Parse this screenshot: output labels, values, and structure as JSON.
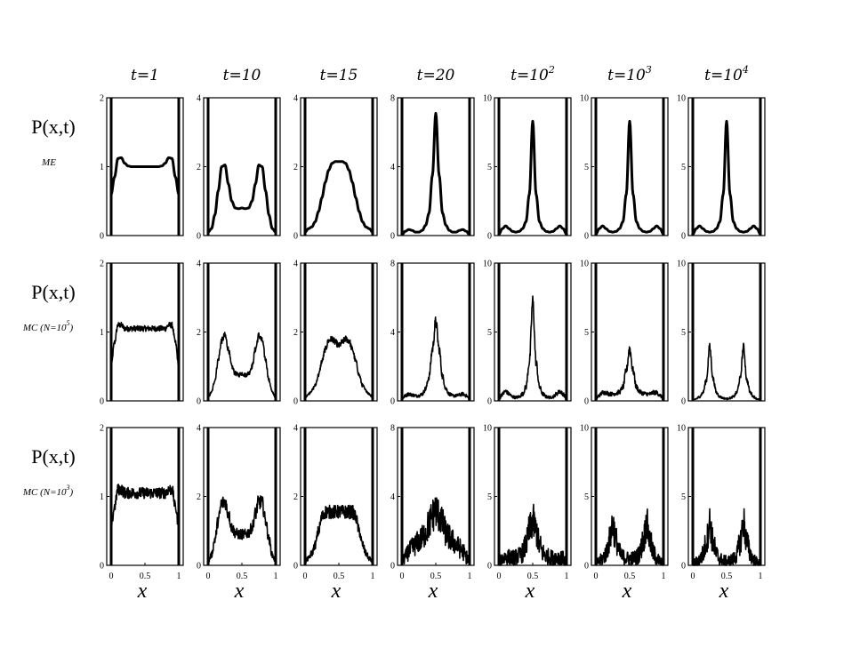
{
  "columns": [
    {
      "base": "t=1",
      "sup": ""
    },
    {
      "base": "t=10",
      "sup": ""
    },
    {
      "base": "t=15",
      "sup": ""
    },
    {
      "base": "t=20",
      "sup": ""
    },
    {
      "base": "t=10",
      "sup": "2"
    },
    {
      "base": "t=10",
      "sup": "3"
    },
    {
      "base": "t=10",
      "sup": "4"
    }
  ],
  "rows": [
    {
      "title": "P(x,t)",
      "sub_base": "ME",
      "sub_sup": "",
      "sub_tail": ""
    },
    {
      "title": "P(x,t)",
      "sub_base": "MC (N=10",
      "sub_sup": "5",
      "sub_tail": ")"
    },
    {
      "title": "P(x,t)",
      "sub_base": "MC (N=10",
      "sub_sup": "3",
      "sub_tail": ")"
    }
  ],
  "xlabel": "x",
  "chart_data": {
    "type": "line",
    "layout": "grid of 3 rows x 7 columns of small panels",
    "xlim": [
      0,
      1
    ],
    "x_ticks": [
      "0",
      "0.5",
      "1"
    ],
    "y_axes_by_column": [
      {
        "ylim": [
          0,
          2
        ],
        "ticks": [
          "0",
          "1",
          "2"
        ]
      },
      {
        "ylim": [
          0,
          4
        ],
        "ticks": [
          "0",
          "2",
          "4"
        ]
      },
      {
        "ylim": [
          0,
          4
        ],
        "ticks": [
          "0",
          "2",
          "4"
        ]
      },
      {
        "ylim": [
          0,
          8
        ],
        "ticks": [
          "0",
          "4",
          "8"
        ]
      },
      {
        "ylim": [
          0,
          10
        ],
        "ticks": [
          "0",
          "5",
          "10"
        ]
      },
      {
        "ylim": [
          0,
          10
        ],
        "ticks": [
          "0",
          "5",
          "10"
        ]
      },
      {
        "ylim": [
          0,
          10
        ],
        "ticks": [
          "0",
          "5",
          "10"
        ]
      }
    ],
    "x": [
      0.0,
      0.05,
      0.1,
      0.15,
      0.2,
      0.25,
      0.3,
      0.35,
      0.4,
      0.45,
      0.5,
      0.55,
      0.6,
      0.65,
      0.7,
      0.75,
      0.8,
      0.85,
      0.9,
      0.95,
      1.0
    ],
    "panels": [
      [
        {
          "values": [
            0.6,
            0.85,
            1.12,
            1.13,
            1.05,
            1.01,
            1.0,
            1.0,
            1.0,
            1.0,
            1.0,
            1.0,
            1.0,
            1.0,
            1.0,
            1.01,
            1.05,
            1.13,
            1.12,
            0.85,
            0.6
          ],
          "noise": 0
        },
        {
          "values": [
            0.1,
            0.2,
            0.6,
            1.3,
            2.0,
            2.05,
            1.5,
            1.0,
            0.8,
            0.78,
            0.8,
            0.78,
            0.8,
            1.0,
            1.5,
            2.05,
            2.0,
            1.3,
            0.6,
            0.2,
            0.1
          ],
          "noise": 0
        },
        {
          "values": [
            0.1,
            0.2,
            0.25,
            0.4,
            0.7,
            1.1,
            1.55,
            1.9,
            2.1,
            2.15,
            2.15,
            2.15,
            2.1,
            1.9,
            1.55,
            1.1,
            0.7,
            0.4,
            0.25,
            0.2,
            0.1
          ],
          "noise": 0
        },
        {
          "values": [
            0.05,
            0.25,
            0.35,
            0.3,
            0.2,
            0.2,
            0.3,
            0.6,
            1.3,
            3.5,
            7.1,
            3.5,
            1.3,
            0.6,
            0.3,
            0.2,
            0.2,
            0.3,
            0.35,
            0.25,
            0.05
          ],
          "noise": 0
        },
        {
          "values": [
            0.1,
            0.5,
            0.7,
            0.5,
            0.3,
            0.25,
            0.3,
            0.5,
            1.0,
            3.0,
            8.3,
            3.0,
            1.0,
            0.5,
            0.3,
            0.25,
            0.3,
            0.5,
            0.7,
            0.5,
            0.1
          ],
          "noise": 0
        },
        {
          "values": [
            0.1,
            0.5,
            0.7,
            0.5,
            0.3,
            0.25,
            0.3,
            0.5,
            1.0,
            3.0,
            8.3,
            3.0,
            1.0,
            0.5,
            0.3,
            0.25,
            0.3,
            0.5,
            0.7,
            0.5,
            0.1
          ],
          "noise": 0
        },
        {
          "values": [
            0.1,
            0.5,
            0.7,
            0.5,
            0.3,
            0.25,
            0.3,
            0.5,
            1.0,
            3.0,
            8.3,
            3.0,
            1.0,
            0.5,
            0.3,
            0.25,
            0.3,
            0.5,
            0.7,
            0.5,
            0.1
          ],
          "noise": 0
        }
      ],
      [
        {
          "values": [
            0.5,
            0.85,
            1.1,
            1.1,
            1.05,
            1.05,
            1.05,
            1.05,
            1.05,
            1.05,
            1.05,
            1.05,
            1.05,
            1.05,
            1.05,
            1.05,
            1.05,
            1.1,
            1.1,
            0.85,
            0.5
          ],
          "noise": 0.08
        },
        {
          "values": [
            0.1,
            0.25,
            0.6,
            1.2,
            1.75,
            1.9,
            1.5,
            1.0,
            0.8,
            0.75,
            0.8,
            0.75,
            0.8,
            1.0,
            1.5,
            1.9,
            1.75,
            1.2,
            0.6,
            0.25,
            0.1
          ],
          "noise": 0.07
        },
        {
          "values": [
            0.1,
            0.2,
            0.3,
            0.45,
            0.75,
            1.15,
            1.5,
            1.75,
            1.8,
            1.7,
            1.6,
            1.7,
            1.8,
            1.75,
            1.5,
            1.15,
            0.75,
            0.45,
            0.3,
            0.2,
            0.1
          ],
          "noise": 0.07
        },
        {
          "values": [
            0.1,
            0.3,
            0.4,
            0.35,
            0.3,
            0.3,
            0.4,
            0.7,
            1.4,
            3.0,
            4.6,
            3.0,
            1.4,
            0.7,
            0.4,
            0.3,
            0.3,
            0.35,
            0.4,
            0.3,
            0.1
          ],
          "noise": 0.08
        },
        {
          "values": [
            0.1,
            0.5,
            0.7,
            0.5,
            0.3,
            0.25,
            0.3,
            0.5,
            1.0,
            2.8,
            7.2,
            2.8,
            1.0,
            0.5,
            0.3,
            0.25,
            0.3,
            0.5,
            0.7,
            0.5,
            0.1
          ],
          "noise": 0.08
        },
        {
          "values": [
            0.1,
            0.4,
            0.6,
            0.6,
            0.5,
            0.5,
            0.55,
            0.65,
            1.0,
            2.2,
            3.8,
            2.2,
            1.0,
            0.65,
            0.55,
            0.5,
            0.5,
            0.6,
            0.6,
            0.4,
            0.1
          ],
          "noise": 0.08
        },
        {
          "values": [
            0.05,
            0.15,
            0.3,
            0.6,
            1.5,
            3.9,
            1.6,
            0.6,
            0.3,
            0.2,
            0.15,
            0.2,
            0.3,
            0.6,
            1.6,
            3.9,
            1.5,
            0.6,
            0.3,
            0.15,
            0.05
          ],
          "noise": 0.06
        }
      ],
      [
        {
          "values": [
            0.55,
            0.85,
            1.1,
            1.1,
            1.05,
            1.05,
            1.05,
            1.05,
            1.05,
            1.05,
            1.05,
            1.05,
            1.05,
            1.05,
            1.05,
            1.05,
            1.05,
            1.1,
            1.1,
            0.85,
            0.55
          ],
          "noise": 0.16
        },
        {
          "values": [
            0.1,
            0.3,
            0.75,
            1.3,
            1.8,
            1.85,
            1.5,
            1.1,
            0.95,
            0.9,
            0.9,
            0.9,
            0.95,
            1.1,
            1.5,
            1.85,
            1.8,
            1.3,
            0.75,
            0.3,
            0.1
          ],
          "noise": 0.16
        },
        {
          "values": [
            0.1,
            0.2,
            0.35,
            0.6,
            1.0,
            1.4,
            1.55,
            1.55,
            1.55,
            1.55,
            1.55,
            1.55,
            1.55,
            1.55,
            1.55,
            1.4,
            1.0,
            0.6,
            0.35,
            0.2,
            0.1
          ],
          "noise": 0.16
        },
        {
          "values": [
            0.2,
            0.5,
            0.8,
            1.0,
            1.2,
            1.4,
            1.6,
            1.9,
            2.4,
            2.9,
            3.2,
            2.9,
            2.4,
            1.9,
            1.6,
            1.4,
            1.2,
            1.0,
            0.8,
            0.5,
            0.2
          ],
          "noise": 0.3
        },
        {
          "values": [
            0.2,
            0.5,
            0.6,
            0.6,
            0.55,
            0.6,
            0.7,
            0.9,
            1.5,
            2.5,
            3.2,
            2.5,
            1.5,
            0.9,
            0.7,
            0.6,
            0.55,
            0.6,
            0.6,
            0.5,
            0.2
          ],
          "noise": 0.3
        },
        {
          "values": [
            0.1,
            0.3,
            0.5,
            0.9,
            1.8,
            3.0,
            1.8,
            0.9,
            0.6,
            0.5,
            0.5,
            0.5,
            0.6,
            0.9,
            1.8,
            3.0,
            1.8,
            0.9,
            0.5,
            0.3,
            0.1
          ],
          "noise": 0.3
        },
        {
          "values": [
            0.1,
            0.25,
            0.4,
            0.8,
            1.7,
            3.1,
            1.7,
            0.8,
            0.45,
            0.35,
            0.3,
            0.35,
            0.45,
            0.8,
            1.7,
            3.1,
            1.7,
            0.8,
            0.4,
            0.25,
            0.1
          ],
          "noise": 0.3
        }
      ]
    ]
  }
}
